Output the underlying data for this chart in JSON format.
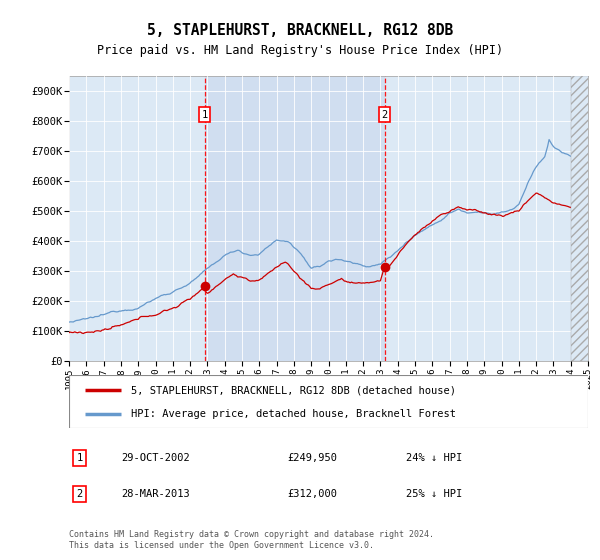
{
  "title": "5, STAPLEHURST, BRACKNELL, RG12 8DB",
  "subtitle": "Price paid vs. HM Land Registry's House Price Index (HPI)",
  "background_color": "#dce9f5",
  "hpi_color": "#6699cc",
  "price_color": "#cc0000",
  "shading_color": "#c8d8ee",
  "ylim": [
    0,
    950000
  ],
  "yticks": [
    0,
    100000,
    200000,
    300000,
    400000,
    500000,
    600000,
    700000,
    800000,
    900000
  ],
  "legend_label_red": "5, STAPLEHURST, BRACKNELL, RG12 8DB (detached house)",
  "legend_label_blue": "HPI: Average price, detached house, Bracknell Forest",
  "annotation1_label": "1",
  "annotation1_date": "29-OCT-2002",
  "annotation1_price": "£249,950",
  "annotation1_hpi": "24% ↓ HPI",
  "annotation2_label": "2",
  "annotation2_date": "28-MAR-2013",
  "annotation2_price": "£312,000",
  "annotation2_hpi": "25% ↓ HPI",
  "footer": "Contains HM Land Registry data © Crown copyright and database right 2024.\nThis data is licensed under the Open Government Licence v3.0.",
  "transaction1_year": 2002.833,
  "transaction1_value": 249950,
  "transaction2_year": 2013.25,
  "transaction2_value": 312000,
  "xlim": [
    1995,
    2025
  ],
  "xticks": [
    1995,
    1996,
    1997,
    1998,
    1999,
    2000,
    2001,
    2002,
    2003,
    2004,
    2005,
    2006,
    2007,
    2008,
    2009,
    2010,
    2011,
    2012,
    2013,
    2014,
    2015,
    2016,
    2017,
    2018,
    2019,
    2020,
    2021,
    2022,
    2023,
    2024,
    2025
  ]
}
